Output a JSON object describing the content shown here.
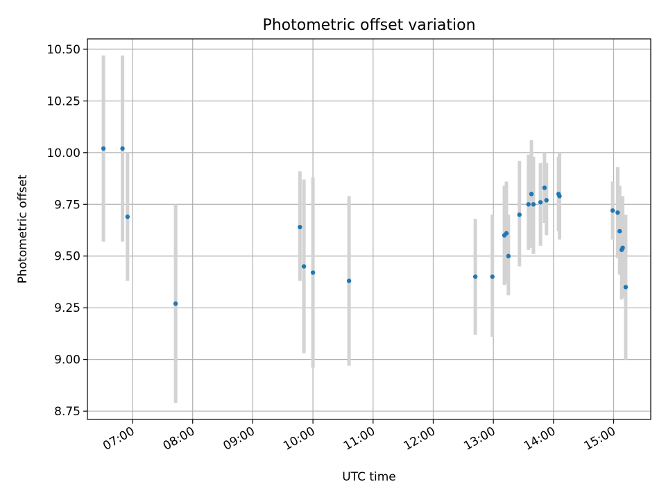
{
  "chart_data": {
    "type": "scatter",
    "title": "Photometric offset variation",
    "xlabel": "UTC time",
    "ylabel": "Photometric offset",
    "x_tick_labels": [
      "07:00",
      "08:00",
      "09:00",
      "10:00",
      "11:00",
      "12:00",
      "13:00",
      "14:00",
      "15:00"
    ],
    "y_tick_labels": [
      "8.75",
      "9.00",
      "9.25",
      "9.50",
      "9.75",
      "10.00",
      "10.25",
      "10.50"
    ],
    "xlim": [
      "06:15",
      "15:37"
    ],
    "ylim": [
      8.71,
      10.55
    ],
    "grid": true,
    "series": [
      {
        "marker_color": "#1f77b4",
        "errorbar_color": "#d3d3d3",
        "points": [
          {
            "x": "06:31",
            "y": 10.02,
            "ylow": 9.57,
            "yhigh": 10.47
          },
          {
            "x": "06:50",
            "y": 10.02,
            "ylow": 9.57,
            "yhigh": 10.47
          },
          {
            "x": "06:55",
            "y": 9.69,
            "ylow": 9.38,
            "yhigh": 10.0
          },
          {
            "x": "07:43",
            "y": 9.27,
            "ylow": 8.79,
            "yhigh": 9.75
          },
          {
            "x": "09:47",
            "y": 9.64,
            "ylow": 9.38,
            "yhigh": 9.91
          },
          {
            "x": "09:51",
            "y": 9.45,
            "ylow": 9.03,
            "yhigh": 9.87
          },
          {
            "x": "10:00",
            "y": 9.42,
            "ylow": 8.96,
            "yhigh": 9.88
          },
          {
            "x": "10:36",
            "y": 9.38,
            "ylow": 8.97,
            "yhigh": 9.79
          },
          {
            "x": "12:42",
            "y": 9.4,
            "ylow": 9.12,
            "yhigh": 9.68
          },
          {
            "x": "12:59",
            "y": 9.4,
            "ylow": 9.11,
            "yhigh": 9.7
          },
          {
            "x": "13:11",
            "y": 9.6,
            "ylow": 9.36,
            "yhigh": 9.84
          },
          {
            "x": "13:13",
            "y": 9.61,
            "ylow": 9.37,
            "yhigh": 9.86
          },
          {
            "x": "13:15",
            "y": 9.5,
            "ylow": 9.31,
            "yhigh": 9.7
          },
          {
            "x": "13:26",
            "y": 9.7,
            "ylow": 9.45,
            "yhigh": 9.96
          },
          {
            "x": "13:35",
            "y": 9.75,
            "ylow": 9.53,
            "yhigh": 9.99
          },
          {
            "x": "13:38",
            "y": 9.8,
            "ylow": 9.54,
            "yhigh": 10.06
          },
          {
            "x": "13:40",
            "y": 9.75,
            "ylow": 9.51,
            "yhigh": 9.98
          },
          {
            "x": "13:47",
            "y": 9.76,
            "ylow": 9.55,
            "yhigh": 9.95
          },
          {
            "x": "13:51",
            "y": 9.83,
            "ylow": 9.66,
            "yhigh": 10.0
          },
          {
            "x": "13:53",
            "y": 9.77,
            "ylow": 9.6,
            "yhigh": 9.95
          },
          {
            "x": "14:05",
            "y": 9.8,
            "ylow": 9.62,
            "yhigh": 9.98
          },
          {
            "x": "14:06",
            "y": 9.79,
            "ylow": 9.58,
            "yhigh": 10.0
          },
          {
            "x": "14:59",
            "y": 9.72,
            "ylow": 9.58,
            "yhigh": 9.86
          },
          {
            "x": "15:04",
            "y": 9.71,
            "ylow": 9.49,
            "yhigh": 9.93
          },
          {
            "x": "15:06",
            "y": 9.62,
            "ylow": 9.41,
            "yhigh": 9.84
          },
          {
            "x": "15:08",
            "y": 9.53,
            "ylow": 9.29,
            "yhigh": 9.78
          },
          {
            "x": "15:09",
            "y": 9.54,
            "ylow": 9.3,
            "yhigh": 9.79
          },
          {
            "x": "15:12",
            "y": 9.35,
            "ylow": 9.0,
            "yhigh": 9.7
          }
        ]
      }
    ]
  }
}
